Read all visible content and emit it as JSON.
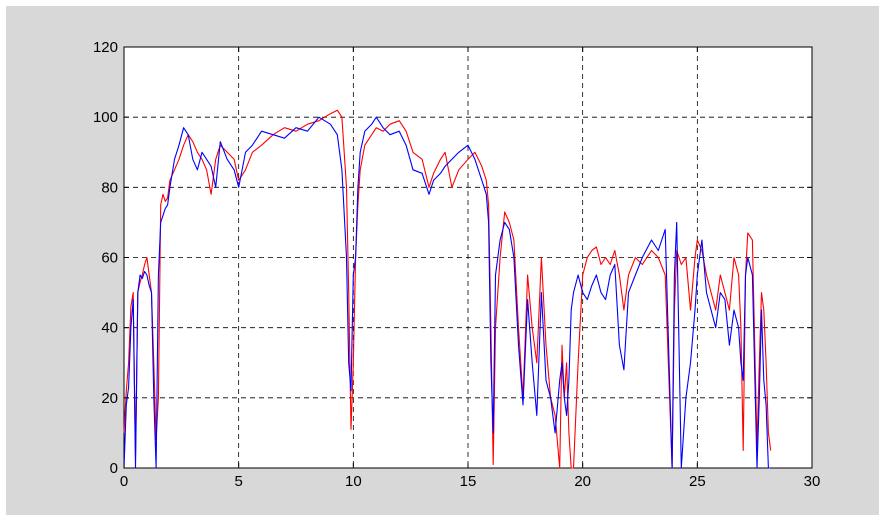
{
  "chart_data": {
    "type": "line",
    "title": "",
    "xlabel": "",
    "ylabel": "",
    "xlim": [
      0,
      30
    ],
    "ylim": [
      0,
      120
    ],
    "x_ticks": [
      "0",
      "5",
      "10",
      "15",
      "20",
      "25",
      "30"
    ],
    "y_ticks": [
      "0",
      "20",
      "40",
      "60",
      "80",
      "100",
      "120"
    ],
    "grid": true,
    "grid_style": "dashed",
    "background": "#d8d8d8",
    "series": [
      {
        "color": "#ff0000",
        "x": [
          0,
          0.1,
          0.2,
          0.3,
          0.4,
          0.5,
          0.6,
          0.7,
          0.8,
          0.9,
          1.0,
          1.1,
          1.2,
          1.3,
          1.4,
          1.5,
          1.6,
          1.7,
          1.8,
          1.9,
          2.0,
          2.2,
          2.4,
          2.6,
          2.8,
          3.0,
          3.2,
          3.4,
          3.6,
          3.8,
          4.0,
          4.2,
          4.5,
          4.8,
          5.0,
          5.3,
          5.6,
          6.0,
          6.5,
          7.0,
          7.5,
          8.0,
          8.5,
          9.0,
          9.3,
          9.5,
          9.7,
          9.8,
          9.9,
          10.0,
          10.1,
          10.2,
          10.3,
          10.5,
          10.8,
          11.0,
          11.3,
          11.6,
          12.0,
          12.3,
          12.6,
          13.0,
          13.3,
          13.5,
          13.8,
          14.0,
          14.3,
          14.6,
          15.0,
          15.3,
          15.6,
          15.8,
          15.9,
          16.0,
          16.1,
          16.2,
          16.4,
          16.6,
          16.8,
          17.0,
          17.2,
          17.4,
          17.6,
          17.8,
          18.0,
          18.2,
          18.4,
          18.6,
          18.8,
          19.0,
          19.1,
          19.2,
          19.3,
          19.4,
          19.5,
          19.6,
          19.8,
          20.0,
          20.2,
          20.4,
          20.6,
          20.8,
          21.0,
          21.2,
          21.4,
          21.6,
          21.8,
          22.0,
          22.3,
          22.6,
          23.0,
          23.3,
          23.6,
          23.9,
          24.0,
          24.1,
          24.3,
          24.5,
          24.7,
          24.9,
          25.0,
          25.2,
          25.4,
          25.6,
          25.8,
          26.0,
          26.2,
          26.4,
          26.6,
          26.8,
          26.9,
          27.0,
          27.1,
          27.2,
          27.4,
          27.6,
          27.7,
          27.8,
          27.9,
          28.0,
          28.1,
          28.2
        ],
        "y": [
          10,
          22,
          30,
          46,
          50,
          3,
          50,
          53,
          55,
          58,
          60,
          55,
          50,
          30,
          8,
          20,
          75,
          78,
          76,
          77,
          82,
          85,
          88,
          92,
          95,
          93,
          90,
          88,
          85,
          78,
          88,
          92,
          90,
          88,
          82,
          85,
          90,
          92,
          95,
          97,
          96,
          98,
          99,
          101,
          102,
          100,
          80,
          50,
          11,
          30,
          60,
          75,
          85,
          92,
          95,
          97,
          96,
          98,
          99,
          96,
          90,
          88,
          80,
          84,
          88,
          90,
          80,
          85,
          88,
          90,
          86,
          82,
          75,
          40,
          1,
          40,
          60,
          73,
          70,
          65,
          40,
          20,
          55,
          40,
          30,
          60,
          35,
          20,
          15,
          0,
          35,
          20,
          30,
          10,
          0,
          0,
          30,
          55,
          60,
          62,
          63,
          58,
          60,
          58,
          62,
          55,
          45,
          55,
          60,
          58,
          62,
          60,
          55,
          0,
          45,
          62,
          58,
          60,
          45,
          60,
          65,
          62,
          55,
          50,
          45,
          55,
          50,
          45,
          60,
          55,
          40,
          5,
          55,
          67,
          65,
          6,
          30,
          50,
          45,
          30,
          10,
          5
        ],
        "name": ""
      },
      {
        "color": "#0000ff",
        "x": [
          0,
          0.1,
          0.2,
          0.3,
          0.4,
          0.5,
          0.6,
          0.7,
          0.8,
          0.9,
          1.0,
          1.1,
          1.2,
          1.3,
          1.4,
          1.5,
          1.6,
          1.7,
          1.8,
          1.9,
          2.0,
          2.2,
          2.4,
          2.6,
          2.8,
          3.0,
          3.2,
          3.4,
          3.6,
          3.8,
          4.0,
          4.2,
          4.5,
          4.8,
          5.0,
          5.3,
          5.6,
          6.0,
          6.5,
          7.0,
          7.5,
          8.0,
          8.5,
          9.0,
          9.3,
          9.5,
          9.7,
          9.8,
          9.9,
          10.0,
          10.1,
          10.2,
          10.3,
          10.5,
          10.8,
          11.0,
          11.3,
          11.6,
          12.0,
          12.3,
          12.6,
          13.0,
          13.3,
          13.5,
          13.8,
          14.0,
          14.3,
          14.6,
          15.0,
          15.3,
          15.6,
          15.8,
          15.9,
          16.0,
          16.1,
          16.2,
          16.4,
          16.6,
          16.8,
          17.0,
          17.2,
          17.4,
          17.6,
          17.8,
          18.0,
          18.2,
          18.4,
          18.6,
          18.8,
          19.0,
          19.1,
          19.2,
          19.3,
          19.4,
          19.5,
          19.6,
          19.8,
          20.0,
          20.2,
          20.4,
          20.6,
          20.8,
          21.0,
          21.2,
          21.4,
          21.6,
          21.8,
          22.0,
          22.3,
          22.6,
          23.0,
          23.3,
          23.6,
          23.9,
          24.0,
          24.1,
          24.3,
          24.5,
          24.7,
          24.9,
          25.0,
          25.2,
          25.4,
          25.6,
          25.8,
          26.0,
          26.2,
          26.4,
          26.6,
          26.8,
          26.9,
          27.0,
          27.1,
          27.2,
          27.4,
          27.6,
          27.7,
          27.8,
          27.9,
          28.0,
          28.1,
          28.2
        ],
        "y": [
          0,
          18,
          23,
          40,
          48,
          0,
          50,
          55,
          54,
          56,
          55,
          52,
          50,
          20,
          0,
          55,
          70,
          72,
          74,
          75,
          80,
          88,
          92,
          97,
          95,
          88,
          85,
          90,
          88,
          86,
          80,
          93,
          88,
          85,
          80,
          90,
          92,
          96,
          95,
          94,
          97,
          96,
          100,
          98,
          95,
          85,
          60,
          30,
          22,
          55,
          60,
          80,
          90,
          96,
          98,
          100,
          97,
          95,
          96,
          92,
          85,
          84,
          78,
          82,
          84,
          86,
          88,
          90,
          92,
          88,
          82,
          78,
          70,
          30,
          10,
          55,
          65,
          70,
          68,
          60,
          35,
          18,
          48,
          30,
          15,
          50,
          25,
          20,
          10,
          25,
          30,
          20,
          15,
          25,
          45,
          50,
          55,
          50,
          48,
          52,
          55,
          50,
          48,
          55,
          58,
          35,
          28,
          50,
          55,
          60,
          65,
          62,
          68,
          0,
          55,
          70,
          0,
          20,
          30,
          45,
          55,
          65,
          50,
          45,
          40,
          50,
          48,
          35,
          45,
          40,
          30,
          25,
          55,
          60,
          55,
          0,
          20,
          45,
          25,
          18,
          0,
          0
        ],
        "name": ""
      }
    ]
  }
}
